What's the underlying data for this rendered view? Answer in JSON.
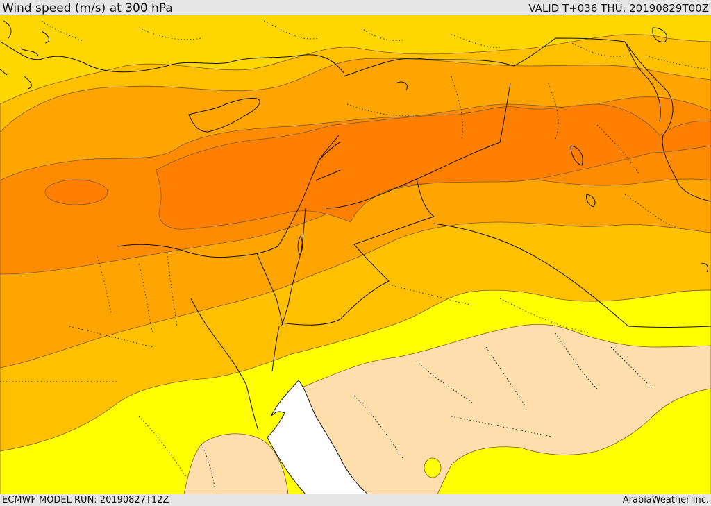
{
  "header": {
    "title": "Wind speed (m/s) at 300 hPa",
    "valid": "VALID T+036 THU. 20190829T00Z"
  },
  "footer": {
    "model_run": "ECMWF MODEL RUN: 20190827T12Z",
    "credit": "ArabiaWeather Inc."
  },
  "map": {
    "field": "wind-speed",
    "level": "300 hPa",
    "colors": {
      "calm_sea": "#ffffff",
      "band_1": "#ffdead",
      "band_2": "#ffff00",
      "band_3": "#ffd700",
      "band_4": "#ffc000",
      "band_5": "#ffa500",
      "band_6": "#ff8c00",
      "band_7": "#ff7f00",
      "contour": "#7a5a3a",
      "boundaries": "#111111"
    }
  }
}
